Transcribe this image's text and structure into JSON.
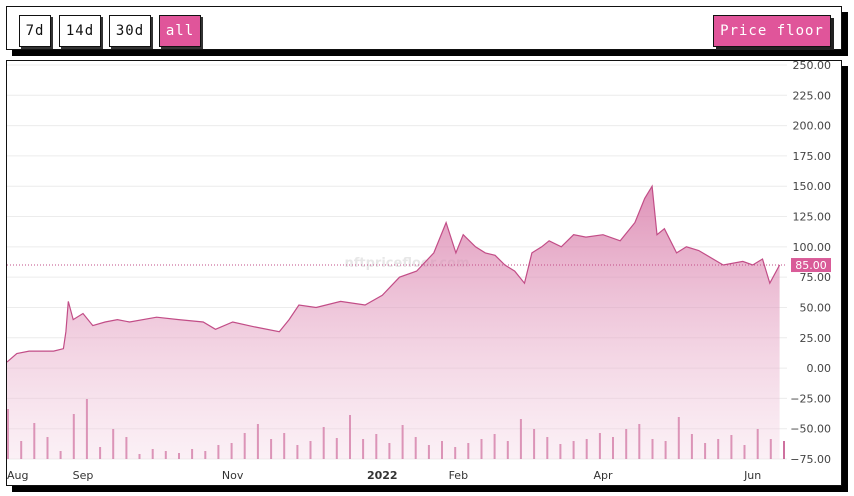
{
  "toolbar": {
    "ranges": [
      "7d",
      "14d",
      "30d",
      "all"
    ],
    "active_range": "all",
    "price_floor_label": "Price floor"
  },
  "watermark": "nftpricefloor.com",
  "chart_data": {
    "type": "area",
    "current_value_label": "85.00",
    "current_value": 85,
    "y_ticks": [
      "250.00",
      "225.00",
      "200.00",
      "175.00",
      "150.00",
      "125.00",
      "100.00",
      "75.00",
      "50.00",
      "25.00",
      "0.00",
      "−25.00",
      "−50.00",
      "−75.00"
    ],
    "ylim": [
      -75,
      250
    ],
    "x_tick_labels": [
      {
        "label": "Aug",
        "date": "2021-08-01"
      },
      {
        "label": "Sep",
        "date": "2021-09-01"
      },
      {
        "label": "Nov",
        "date": "2021-11-01"
      },
      {
        "label": "2022",
        "date": "2022-01-01"
      },
      {
        "label": "Feb",
        "date": "2022-02-01"
      },
      {
        "label": "Apr",
        "date": "2022-04-01"
      },
      {
        "label": "Jun",
        "date": "2022-06-01"
      }
    ],
    "xlim": [
      "2021-08-01",
      "2022-06-15"
    ],
    "series": [
      {
        "kind": "price",
        "x": [
          "2021-08-01",
          "2021-08-05",
          "2021-08-10",
          "2021-08-20",
          "2021-08-24",
          "2021-08-25",
          "2021-08-26",
          "2021-08-28",
          "2021-09-01",
          "2021-09-05",
          "2021-09-10",
          "2021-09-15",
          "2021-09-20",
          "2021-10-01",
          "2021-10-10",
          "2021-10-20",
          "2021-10-25",
          "2021-11-01",
          "2021-11-10",
          "2021-11-20",
          "2021-11-24",
          "2021-11-28",
          "2021-12-05",
          "2021-12-15",
          "2021-12-25",
          "2022-01-01",
          "2022-01-08",
          "2022-01-15",
          "2022-01-22",
          "2022-01-27",
          "2022-01-31",
          "2022-02-03",
          "2022-02-08",
          "2022-02-12",
          "2022-02-16",
          "2022-02-20",
          "2022-02-24",
          "2022-02-28",
          "2022-03-03",
          "2022-03-07",
          "2022-03-10",
          "2022-03-15",
          "2022-03-20",
          "2022-03-25",
          "2022-04-01",
          "2022-04-08",
          "2022-04-14",
          "2022-04-18",
          "2022-04-21",
          "2022-04-23",
          "2022-04-26",
          "2022-05-01",
          "2022-05-05",
          "2022-05-10",
          "2022-05-20",
          "2022-05-28",
          "2022-06-01",
          "2022-06-05",
          "2022-06-08",
          "2022-06-12"
        ],
        "values": [
          5,
          12,
          14,
          14,
          16,
          30,
          55,
          40,
          45,
          35,
          38,
          40,
          38,
          42,
          40,
          38,
          32,
          38,
          34,
          30,
          40,
          52,
          50,
          55,
          52,
          60,
          75,
          80,
          95,
          120,
          95,
          110,
          100,
          95,
          93,
          85,
          80,
          70,
          95,
          100,
          105,
          100,
          110,
          108,
          110,
          105,
          120,
          140,
          150,
          110,
          115,
          95,
          100,
          97,
          85,
          88,
          85,
          90,
          70,
          85
        ]
      }
    ],
    "volume_data": [
      50,
      18,
      36,
      22,
      8,
      45,
      60,
      12,
      30,
      22,
      5,
      10,
      8,
      6,
      10,
      8,
      14,
      16,
      26,
      35,
      20,
      26,
      14,
      18,
      32,
      21,
      44,
      20,
      25,
      16,
      34,
      22,
      14,
      18,
      12,
      16,
      20,
      25,
      18,
      40,
      30,
      22,
      15,
      18,
      20,
      26,
      22,
      30,
      35,
      20,
      18,
      42,
      25,
      16,
      20,
      24,
      14,
      30,
      20,
      18
    ]
  }
}
